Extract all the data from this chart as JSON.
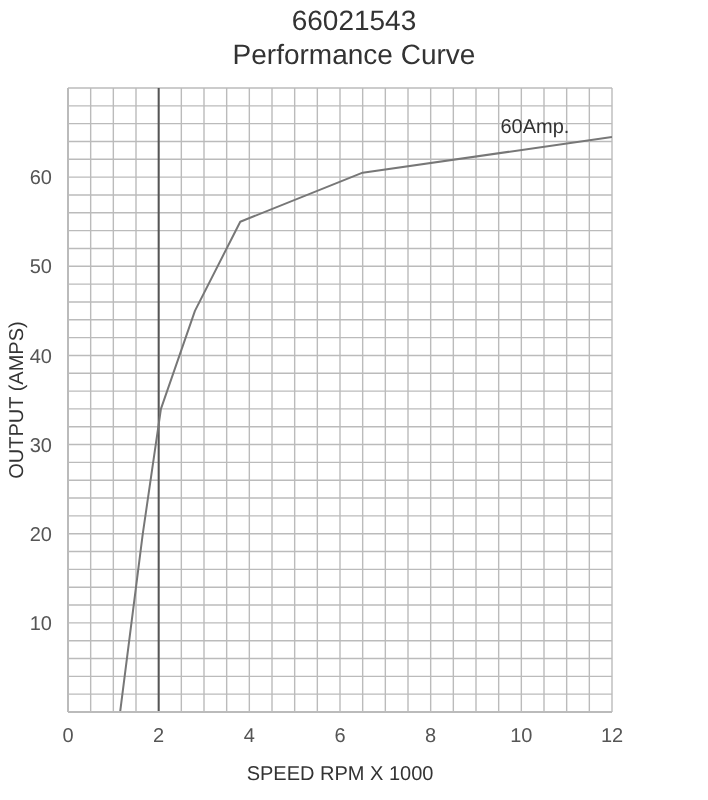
{
  "chart_data": {
    "type": "line",
    "title": "66021543",
    "subtitle": "Performance Curve",
    "xlabel": "SPEED RPM X 1000",
    "ylabel": "OUTPUT (AMPS)",
    "x": [
      1.15,
      1.65,
      2.05,
      2.8,
      3.8,
      6.5,
      12
    ],
    "series": [
      {
        "color": "#777777",
        "values": [
          0,
          20,
          34,
          45,
          55,
          60.5,
          64.5
        ]
      }
    ],
    "xlim": [
      0,
      12
    ],
    "ylim": [
      0,
      70
    ],
    "xticks": [
      0,
      {
        "value": 0.5,
        "label": null
      },
      2,
      {
        "value": 1,
        "label": null
      },
      {
        "value": 1.5,
        "label": null
      },
      {
        "value": 2.5,
        "label": null
      },
      {
        "value": 3,
        "label": null
      },
      {
        "value": 3.5,
        "label": null
      },
      4,
      {
        "value": 4.5,
        "label": null
      },
      {
        "value": 5,
        "label": null
      },
      {
        "value": 5.5,
        "label": null
      },
      6,
      {
        "value": 6.5,
        "label": null
      },
      {
        "value": 7,
        "label": null
      },
      {
        "value": 7.5,
        "label": null
      },
      8,
      {
        "value": 8.5,
        "label": null
      },
      {
        "value": 9,
        "label": null
      },
      {
        "value": 9.5,
        "label": null
      },
      10,
      {
        "value": 10.5,
        "label": null
      },
      {
        "value": 11,
        "label": null
      },
      {
        "value": 11.5,
        "label": null
      },
      12
    ],
    "yticks": [
      {
        "value": 0,
        "label": null
      },
      {
        "value": 2,
        "label": null
      },
      {
        "value": 4,
        "label": null
      },
      {
        "value": 6,
        "label": null
      },
      {
        "value": 8,
        "label": null
      },
      10,
      {
        "value": 12,
        "label": null
      },
      {
        "value": 14,
        "label": null
      },
      {
        "value": 16,
        "label": null
      },
      {
        "value": 18,
        "label": null
      },
      20,
      {
        "value": 22,
        "label": null
      },
      {
        "value": 24,
        "label": null
      },
      {
        "value": 26,
        "label": null
      },
      {
        "value": 28,
        "label": null
      },
      30,
      {
        "value": 32,
        "label": null
      },
      {
        "value": 34,
        "label": null
      },
      {
        "value": 36,
        "label": null
      },
      {
        "value": 38,
        "label": null
      },
      40,
      {
        "value": 42,
        "label": null
      },
      {
        "value": 44,
        "label": null
      },
      {
        "value": 46,
        "label": null
      },
      {
        "value": 48,
        "label": null
      },
      50,
      {
        "value": 52,
        "label": null
      },
      {
        "value": 54,
        "label": null
      },
      {
        "value": 56,
        "label": null
      },
      {
        "value": 58,
        "label": null
      },
      60,
      {
        "value": 62,
        "label": null
      },
      {
        "value": 64,
        "label": null
      },
      {
        "value": 66,
        "label": null
      },
      {
        "value": 68,
        "label": null
      },
      {
        "value": 70,
        "label": null
      }
    ],
    "grid": true,
    "marker": "none",
    "line_style": "solid",
    "ref_lines": [
      {
        "axis": "x",
        "value": 2,
        "label": null,
        "color": "#555555"
      }
    ],
    "annotations": [
      {
        "text": "60Amp.",
        "x": 10.3,
        "y": 64
      }
    ]
  }
}
